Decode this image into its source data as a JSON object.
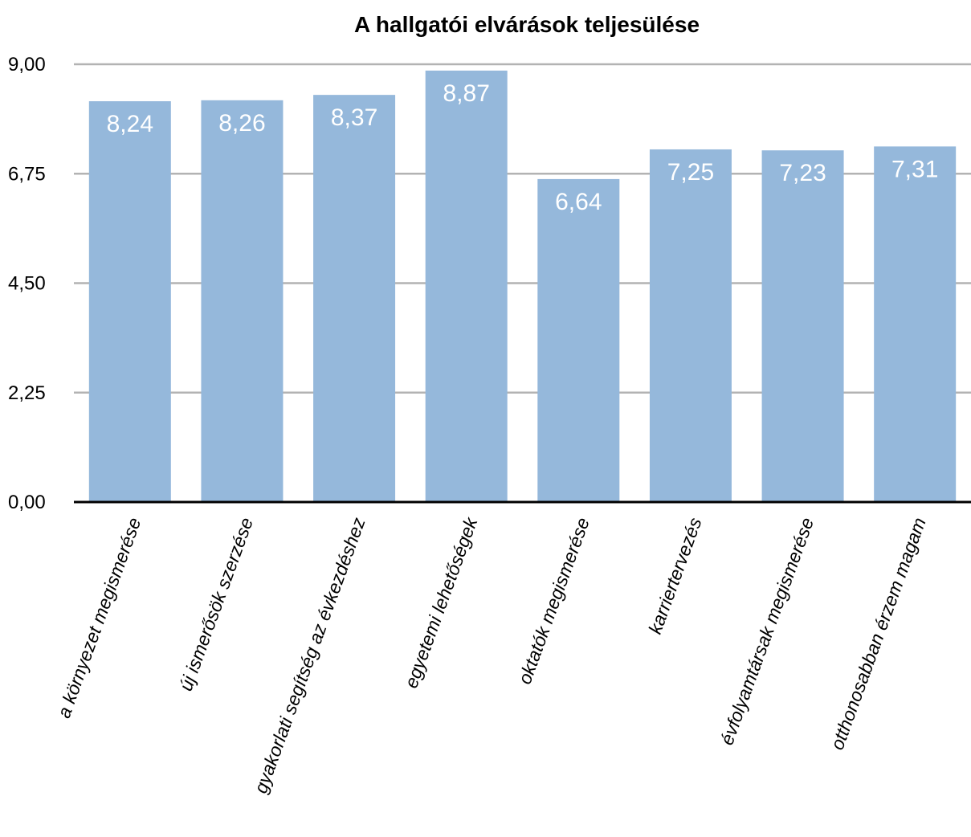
{
  "chart_data": {
    "type": "bar",
    "title": "A hallgatói elvárások teljesülése",
    "categories": [
      "a környezet megismerése",
      "új ismerősök szerzése",
      "gyakorlati segítség az évkezdéshez",
      "egyetemi lehetőségek",
      "oktatók megismerése",
      "karriertervezés",
      "évfolyamtársak megismerése",
      "otthonosabban érzem magam"
    ],
    "values": [
      8.24,
      8.26,
      8.37,
      8.87,
      6.64,
      7.25,
      7.23,
      7.31
    ],
    "value_labels": [
      "8,24",
      "8,26",
      "8,37",
      "8,87",
      "6,64",
      "7,25",
      "7,23",
      "7,31"
    ],
    "yticks": [
      0,
      2.25,
      4.5,
      6.75,
      9
    ],
    "ytick_labels": [
      "0,00",
      "2,25",
      "4,50",
      "6,75",
      "9,00"
    ],
    "ylim": [
      0,
      9
    ],
    "grid": true,
    "bar_color": "#95b8db",
    "grid_color": "#b3b3b3",
    "axis_color": "#000000",
    "label_color": "#ffffff"
  }
}
